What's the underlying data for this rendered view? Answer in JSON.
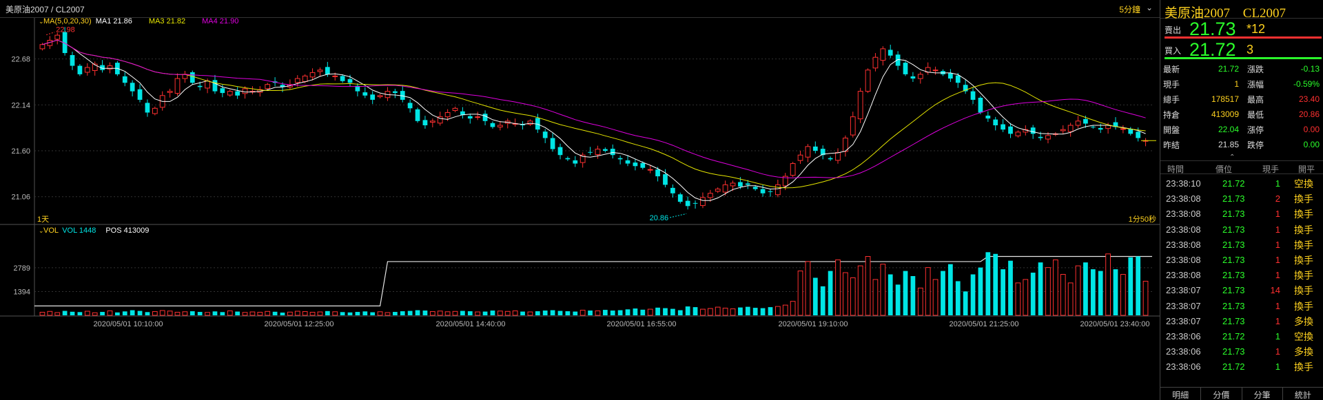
{
  "header": {
    "symbol_title": "美原油2007 / CL2007",
    "interval": "5分鐘"
  },
  "chart_data": {
    "type": "candlestick",
    "indicator_main": {
      "label": "MA(5,0,20,30)",
      "ma1": "MA1 21.86",
      "ma3": "MA3 21.82",
      "ma4": "MA4 21.90"
    },
    "price_ticks": [
      "22.68",
      "22.14",
      "21.60",
      "21.06"
    ],
    "price_range": [
      20.75,
      23.05
    ],
    "high_marker": "22.98",
    "low_marker": "20.86",
    "period_left": "1天",
    "period_right": "1分50秒",
    "indicator_vol": {
      "label": "VOL",
      "vol": "VOL 1448",
      "pos": "POS 413009"
    },
    "vol_ticks": [
      "2789",
      "1394"
    ],
    "vol_max": 4600,
    "pos_levels": {
      "before": 550,
      "middle": 3150,
      "last": 3450
    },
    "time_labels": [
      "2020/05/01 10:10:00",
      "2020/05/01 12:25:00",
      "2020/05/01 14:40:00",
      "2020/05/01 16:55:00",
      "2020/05/01 19:10:00",
      "2020/05/01 21:25:00",
      "2020/05/01 23:40:00"
    ],
    "closes": [
      22.85,
      22.9,
      22.96,
      22.75,
      22.6,
      22.5,
      22.58,
      22.62,
      22.55,
      22.6,
      22.5,
      22.4,
      22.3,
      22.2,
      22.05,
      22.1,
      22.25,
      22.3,
      22.45,
      22.5,
      22.4,
      22.35,
      22.42,
      22.3,
      22.28,
      22.3,
      22.25,
      22.33,
      22.3,
      22.32,
      22.38,
      22.4,
      22.35,
      22.38,
      22.45,
      22.48,
      22.52,
      22.55,
      22.5,
      22.48,
      22.42,
      22.4,
      22.3,
      22.25,
      22.2,
      22.25,
      22.3,
      22.28,
      22.2,
      22.1,
      21.95,
      21.9,
      21.95,
      22.0,
      22.05,
      22.1,
      22.02,
      21.98,
      22.0,
      21.95,
      21.88,
      21.9,
      21.95,
      21.92,
      21.9,
      21.95,
      21.85,
      21.75,
      21.62,
      21.55,
      21.5,
      21.45,
      21.55,
      21.58,
      21.62,
      21.6,
      21.55,
      21.5,
      21.45,
      21.42,
      21.4,
      21.38,
      21.3,
      21.2,
      21.1,
      21.0,
      20.95,
      20.98,
      21.05,
      21.1,
      21.15,
      21.2,
      21.22,
      21.18,
      21.2,
      21.15,
      21.1,
      21.12,
      21.2,
      21.3,
      21.45,
      21.55,
      21.65,
      21.6,
      21.55,
      21.5,
      21.58,
      21.75,
      22.0,
      22.3,
      22.55,
      22.7,
      22.8,
      22.72,
      22.6,
      22.5,
      22.45,
      22.5,
      22.58,
      22.55,
      22.5,
      22.45,
      22.4,
      22.3,
      22.2,
      22.05,
      21.98,
      21.9,
      21.85,
      21.8,
      21.82,
      21.85,
      21.8,
      21.75,
      21.78,
      21.8,
      21.85,
      21.9,
      21.95,
      21.92,
      21.88,
      21.85,
      21.9,
      21.88,
      21.86,
      21.8,
      21.75,
      21.72
    ],
    "volumes": [
      180,
      230,
      160,
      260,
      210,
      190,
      240,
      150,
      200,
      260,
      170,
      230,
      300,
      260,
      190,
      220,
      280,
      250,
      180,
      210,
      240,
      200,
      170,
      230,
      190,
      260,
      220,
      170,
      200,
      180,
      230,
      210,
      160,
      190,
      240,
      220,
      180,
      200,
      250,
      210,
      190,
      170,
      200,
      230,
      180,
      210,
      160,
      200,
      240,
      260,
      300,
      280,
      220,
      250,
      210,
      230,
      260,
      240,
      200,
      220,
      280,
      250,
      230,
      260,
      220,
      200,
      240,
      280,
      300,
      260,
      240,
      220,
      300,
      280,
      260,
      320,
      280,
      300,
      350,
      400,
      330,
      360,
      450,
      420,
      380,
      300,
      520,
      480,
      360,
      400,
      480,
      420,
      380,
      460,
      500,
      440,
      420,
      480,
      520,
      600,
      820,
      2600,
      3150,
      2200,
      1700,
      2600,
      3250,
      2500,
      2200,
      2900,
      3450,
      2100,
      3000,
      2400,
      1800,
      2600,
      2300,
      1600,
      2800,
      2100,
      2600,
      3000,
      2000,
      1400,
      2400,
      2800,
      3700,
      3600,
      2700,
      3200,
      1900,
      2100,
      2500,
      3100,
      2800,
      3250,
      2400,
      1900,
      2900,
      3100,
      2700,
      2600,
      3600,
      2700,
      2400,
      3400,
      3450,
      2000,
      1450,
      1448
    ]
  },
  "panel": {
    "name": "美原油2007",
    "code": "CL2007",
    "sell_label": "賣出",
    "sell_price": "21.73",
    "sell_qty": "*12",
    "buy_label": "買入",
    "buy_price": "21.72",
    "buy_qty": "3",
    "stats": [
      {
        "k": "最新",
        "v": "21.72",
        "vc": "#2bff2b",
        "k2": "漲跌",
        "v2": "-0.13",
        "v2c": "#2bff2b"
      },
      {
        "k": "現手",
        "v": "1",
        "vc": "#ffd21f",
        "k2": "漲幅",
        "v2": "-0.59%",
        "v2c": "#2bff2b"
      },
      {
        "k": "總手",
        "v": "178517",
        "vc": "#ffd21f",
        "k2": "最高",
        "v2": "23.40",
        "v2c": "#ff3030"
      },
      {
        "k": "持倉",
        "v": "413009",
        "vc": "#ffd21f",
        "k2": "最低",
        "v2": "20.86",
        "v2c": "#ff3030"
      },
      {
        "k": "開盤",
        "v": "22.04",
        "vc": "#2bff2b",
        "k2": "漲停",
        "v2": "0.00",
        "v2c": "#ff3030"
      },
      {
        "k": "昨結",
        "v": "21.85",
        "vc": "#dddddd",
        "k2": "跌停",
        "v2": "0.00",
        "v2c": "#2bff2b"
      }
    ],
    "tick_headers": [
      "時間",
      "價位",
      "現手",
      "開平"
    ],
    "ticks": [
      {
        "t": "23:38:10",
        "p": "21.72",
        "q": "1",
        "qc": "#2bff2b",
        "o": "空換"
      },
      {
        "t": "23:38:08",
        "p": "21.73",
        "q": "2",
        "qc": "#ff3030",
        "o": "換手"
      },
      {
        "t": "23:38:08",
        "p": "21.73",
        "q": "1",
        "qc": "#ff3030",
        "o": "換手"
      },
      {
        "t": "23:38:08",
        "p": "21.73",
        "q": "1",
        "qc": "#ff3030",
        "o": "換手"
      },
      {
        "t": "23:38:08",
        "p": "21.73",
        "q": "1",
        "qc": "#ff3030",
        "o": "換手"
      },
      {
        "t": "23:38:08",
        "p": "21.73",
        "q": "1",
        "qc": "#ff3030",
        "o": "換手"
      },
      {
        "t": "23:38:08",
        "p": "21.73",
        "q": "1",
        "qc": "#ff3030",
        "o": "換手"
      },
      {
        "t": "23:38:07",
        "p": "21.73",
        "q": "14",
        "qc": "#ff3030",
        "o": "換手"
      },
      {
        "t": "23:38:07",
        "p": "21.73",
        "q": "1",
        "qc": "#ff3030",
        "o": "換手"
      },
      {
        "t": "23:38:07",
        "p": "21.73",
        "q": "1",
        "qc": "#ff3030",
        "o": "多換"
      },
      {
        "t": "23:38:06",
        "p": "21.72",
        "q": "1",
        "qc": "#2bff2b",
        "o": "空換"
      },
      {
        "t": "23:38:06",
        "p": "21.73",
        "q": "1",
        "qc": "#ff3030",
        "o": "多換"
      },
      {
        "t": "23:38:06",
        "p": "21.72",
        "q": "1",
        "qc": "#2bff2b",
        "o": "換手"
      }
    ],
    "tabs": [
      "明細",
      "分價",
      "分筆",
      "統計"
    ]
  },
  "colors": {
    "up": "#ff3030",
    "down": "#00e5e5",
    "ma1": "#ffffff",
    "ma3": "#e6e600",
    "ma4": "#e000e0",
    "accent": "#ffd21f"
  }
}
